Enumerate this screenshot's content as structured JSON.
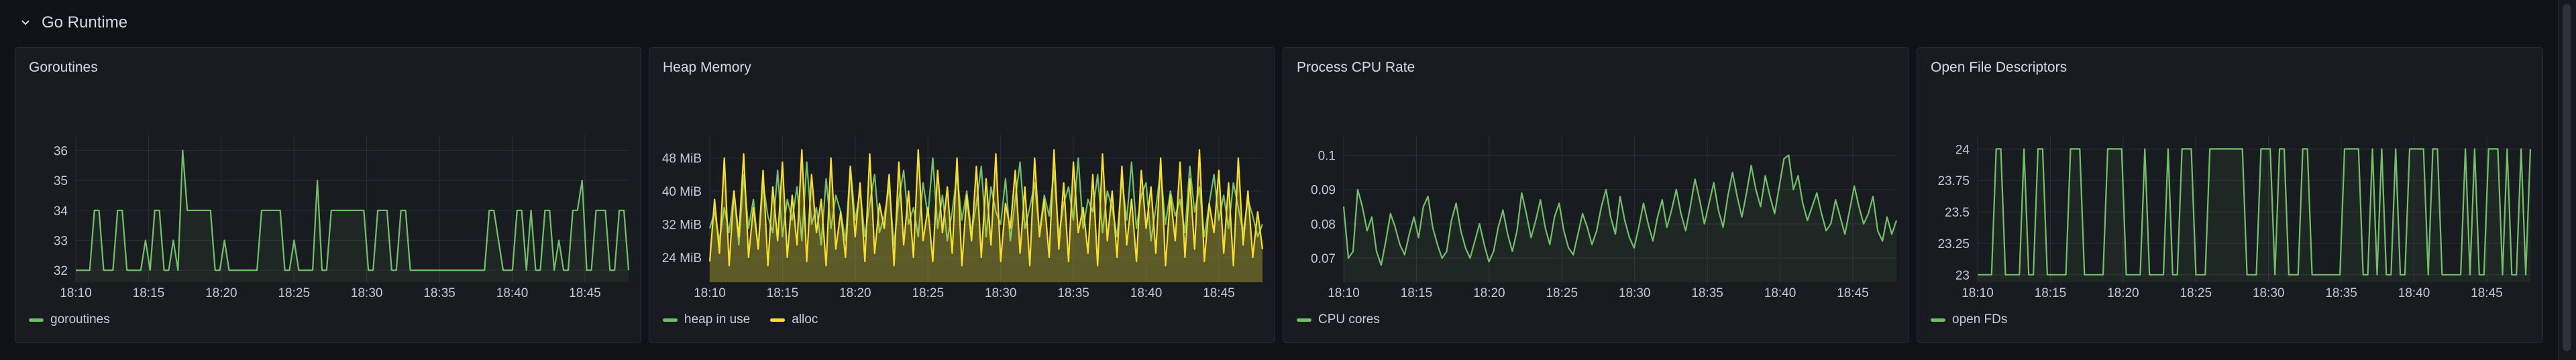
{
  "row": {
    "title": "Go Runtime"
  },
  "colors": {
    "green": "#73bf69",
    "yellow": "#fade2a",
    "grid": "#2b2e36",
    "tick": "#c7c8d1"
  },
  "panels": [
    {
      "title": "Goroutines",
      "legend": [
        {
          "label": "goroutines",
          "color": "#73bf69"
        }
      ],
      "chart_data": {
        "type": "line",
        "xticks": [
          "18:10",
          "18:15",
          "18:20",
          "18:25",
          "18:30",
          "18:35",
          "18:40",
          "18:45"
        ],
        "x_range": [
          "18:10",
          "18:48"
        ],
        "yticks": [
          "32",
          "33",
          "34",
          "35",
          "36"
        ],
        "ylim": [
          31.6,
          36.3
        ],
        "fill": true,
        "series": [
          {
            "name": "goroutines",
            "color": "#73bf69",
            "values": [
              32,
              32,
              32,
              32,
              34,
              34,
              32,
              32,
              32,
              34,
              34,
              32,
              32,
              32,
              32,
              33,
              32,
              34,
              34,
              32,
              32,
              33,
              32,
              36,
              34,
              34,
              34,
              34,
              34,
              34,
              32,
              32,
              33,
              32,
              32,
              32,
              32,
              32,
              32,
              32,
              34,
              34,
              34,
              34,
              34,
              32,
              32,
              33,
              32,
              32,
              32,
              32,
              35,
              32,
              32,
              34,
              34,
              34,
              34,
              34,
              34,
              34,
              34,
              32,
              32,
              34,
              34,
              34,
              32,
              32,
              34,
              34,
              32,
              32,
              32,
              32,
              32,
              32,
              32,
              32,
              32,
              32,
              32,
              32,
              32,
              32,
              32,
              32,
              32,
              34,
              34,
              33,
              32,
              32,
              32,
              34,
              34,
              32,
              34,
              32,
              32,
              34,
              34,
              32,
              33,
              32,
              32,
              34,
              34,
              35,
              32,
              32,
              34,
              34,
              34,
              32,
              32,
              34,
              34,
              32
            ]
          }
        ]
      }
    },
    {
      "title": "Heap Memory",
      "legend": [
        {
          "label": "heap in use",
          "color": "#73bf69"
        },
        {
          "label": "alloc",
          "color": "#fade2a"
        }
      ],
      "chart_data": {
        "type": "line",
        "xticks": [
          "18:10",
          "18:15",
          "18:20",
          "18:25",
          "18:30",
          "18:35",
          "18:40",
          "18:45"
        ],
        "x_range": [
          "18:10",
          "18:48"
        ],
        "yticks": [
          "24 MiB",
          "32 MiB",
          "40 MiB",
          "48 MiB"
        ],
        "ytick_values": [
          24,
          32,
          40,
          48
        ],
        "ylim": [
          18,
          52
        ],
        "fill": true,
        "series": [
          {
            "name": "heap in use",
            "color": "#73bf69",
            "values": [
              31,
              35,
              28,
              36,
              30,
              40,
              27,
              44,
              31,
              38,
              26,
              42,
              34,
              30,
              45,
              29,
              38,
              33,
              41,
              28,
              47,
              32,
              36,
              27,
              43,
              31,
              39,
              35,
              28,
              46,
              33,
              40,
              29,
              37,
              44,
              30,
              34,
              41,
              27,
              38,
              45,
              32,
              36,
              29,
              42,
              34,
              48,
              31,
              39,
              28,
              35,
              44,
              33,
              40,
              30,
              37,
              46,
              29,
              41,
              35,
              32,
              43,
              28,
              38,
              47,
              31,
              36,
              42,
              30,
              39,
              34,
              45,
              29,
              37,
              41,
              33,
              48,
              31,
              38,
              35,
              44,
              30,
              40,
              36,
              29,
              43,
              33,
              47,
              31,
              39,
              42,
              28,
              36,
              45,
              32,
              40,
              34,
              38,
              30,
              46,
              35,
              41,
              29,
              37,
              44,
              33,
              39,
              31,
              42,
              36,
              30,
              38,
              34,
              29,
              32
            ]
          },
          {
            "name": "alloc",
            "color": "#fade2a",
            "values": [
              23,
              38,
              25,
              48,
              22,
              40,
              29,
              49,
              24,
              36,
              26,
              45,
              22,
              41,
              28,
              47,
              24,
              39,
              27,
              50,
              23,
              44,
              30,
              38,
              22,
              48,
              26,
              35,
              24,
              46,
              29,
              42,
              23,
              49,
              25,
              37,
              31,
              44,
              22,
              47,
              27,
              40,
              24,
              50,
              28,
              36,
              23,
              45,
              30,
              41,
              25,
              48,
              22,
              39,
              28,
              46,
              24,
              43,
              27,
              49,
              23,
              37,
              31,
              45,
              25,
              41,
              22,
              48,
              29,
              38,
              24,
              50,
              26,
              42,
              23,
              47,
              30,
              36,
              25,
              44,
              22,
              49,
              28,
              40,
              24,
              46,
              27,
              38,
              23,
              45,
              31,
              41,
              25,
              48,
              22,
              39,
              28,
              47,
              24,
              43,
              26,
              50,
              23,
              37,
              30,
              45,
              25,
              42,
              22,
              48,
              27,
              40,
              24,
              35,
              26
            ]
          }
        ]
      }
    },
    {
      "title": "Process CPU Rate",
      "legend": [
        {
          "label": "CPU cores",
          "color": "#73bf69"
        }
      ],
      "chart_data": {
        "type": "line",
        "xticks": [
          "18:10",
          "18:15",
          "18:20",
          "18:25",
          "18:30",
          "18:35",
          "18:40",
          "18:45"
        ],
        "x_range": [
          "18:10",
          "18:48"
        ],
        "yticks": [
          "0.07",
          "0.08",
          "0.09",
          "0.1"
        ],
        "ytick_values": [
          0.07,
          0.08,
          0.09,
          0.1
        ],
        "ylim": [
          0.063,
          0.104
        ],
        "fill": true,
        "series": [
          {
            "name": "CPU cores",
            "color": "#73bf69",
            "values": [
              0.085,
              0.07,
              0.072,
              0.09,
              0.085,
              0.078,
              0.082,
              0.072,
              0.068,
              0.075,
              0.083,
              0.079,
              0.074,
              0.071,
              0.077,
              0.082,
              0.076,
              0.085,
              0.088,
              0.079,
              0.074,
              0.07,
              0.072,
              0.081,
              0.086,
              0.078,
              0.073,
              0.07,
              0.075,
              0.08,
              0.074,
              0.069,
              0.072,
              0.079,
              0.084,
              0.077,
              0.072,
              0.078,
              0.089,
              0.083,
              0.076,
              0.081,
              0.087,
              0.079,
              0.074,
              0.082,
              0.086,
              0.078,
              0.073,
              0.071,
              0.077,
              0.083,
              0.079,
              0.074,
              0.078,
              0.085,
              0.09,
              0.082,
              0.077,
              0.088,
              0.081,
              0.076,
              0.073,
              0.079,
              0.086,
              0.08,
              0.075,
              0.082,
              0.087,
              0.079,
              0.084,
              0.09,
              0.083,
              0.078,
              0.085,
              0.093,
              0.087,
              0.08,
              0.086,
              0.092,
              0.084,
              0.079,
              0.088,
              0.095,
              0.088,
              0.082,
              0.089,
              0.097,
              0.09,
              0.085,
              0.094,
              0.088,
              0.083,
              0.091,
              0.099,
              0.1,
              0.09,
              0.094,
              0.086,
              0.081,
              0.085,
              0.089,
              0.083,
              0.078,
              0.08,
              0.087,
              0.082,
              0.077,
              0.084,
              0.091,
              0.085,
              0.08,
              0.083,
              0.088,
              0.078,
              0.075,
              0.082,
              0.077,
              0.081
            ]
          }
        ]
      }
    },
    {
      "title": "Open File Descriptors",
      "legend": [
        {
          "label": "open FDs",
          "color": "#73bf69"
        }
      ],
      "chart_data": {
        "type": "line",
        "xticks": [
          "18:10",
          "18:15",
          "18:20",
          "18:25",
          "18:30",
          "18:35",
          "18:40",
          "18:45"
        ],
        "x_range": [
          "18:10",
          "18:48"
        ],
        "yticks": [
          "23",
          "23.25",
          "23.5",
          "23.75",
          "24"
        ],
        "ytick_values": [
          23,
          23.25,
          23.5,
          23.75,
          24
        ],
        "ylim": [
          22.94,
          24.06
        ],
        "fill": true,
        "series": [
          {
            "name": "open FDs",
            "color": "#73bf69",
            "values": [
              23,
              23,
              23,
              23,
              24,
              24,
              23,
              23,
              23,
              23,
              24,
              23,
              23,
              24,
              24,
              23,
              23,
              23,
              23,
              23,
              24,
              24,
              24,
              23,
              23,
              23,
              23,
              23,
              24,
              24,
              24,
              24,
              23,
              23,
              23,
              23,
              24,
              23,
              23,
              23,
              23,
              24,
              23,
              23,
              24,
              24,
              24,
              23,
              23,
              23,
              24,
              24,
              24,
              24,
              24,
              24,
              24,
              24,
              23,
              23,
              23,
              24,
              24,
              24,
              23,
              24,
              24,
              23,
              23,
              23,
              24,
              24,
              23,
              23,
              23,
              23,
              23,
              23,
              23,
              24,
              24,
              24,
              24,
              23,
              23,
              24,
              23,
              24,
              23,
              23,
              24,
              23,
              23,
              24,
              24,
              24,
              24,
              23,
              24,
              24,
              23,
              23,
              23,
              23,
              23,
              24,
              23,
              24,
              23,
              23,
              24,
              24,
              24,
              23,
              24,
              23,
              23,
              24,
              23,
              24
            ]
          }
        ]
      }
    }
  ]
}
